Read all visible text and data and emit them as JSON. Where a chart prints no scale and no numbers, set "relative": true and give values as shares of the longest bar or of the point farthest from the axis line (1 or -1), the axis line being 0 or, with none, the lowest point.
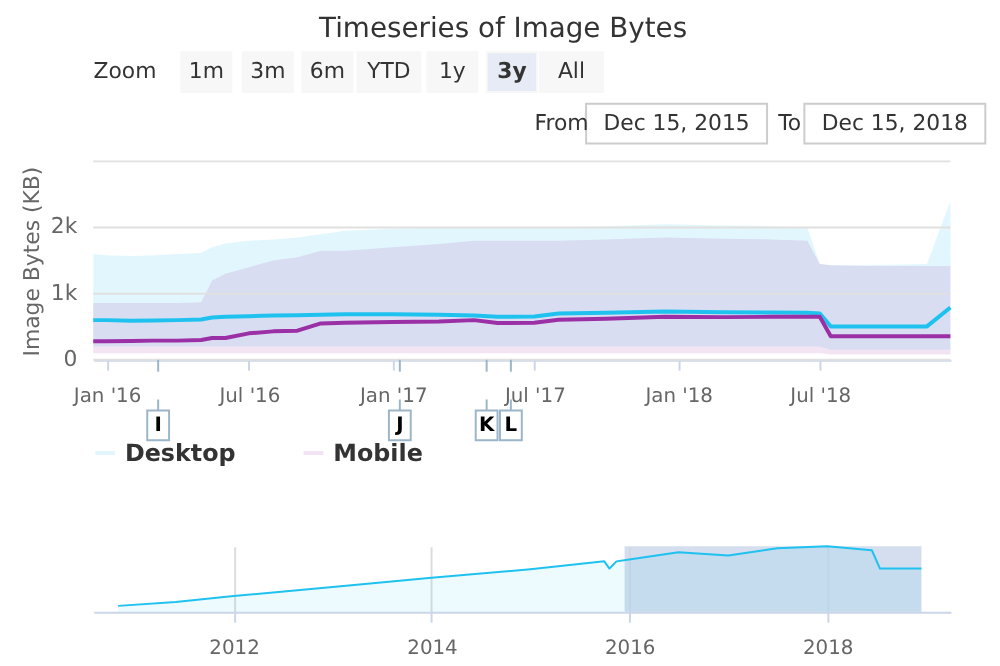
{
  "chart_data": [
    {
      "type": "line",
      "title": "Timeseries of Image Bytes",
      "ylabel": "Image Bytes (KB)",
      "x": [
        "2015-12-15",
        "2016-01-01",
        "2016-02-01",
        "2016-03-01",
        "2016-04-01",
        "2016-05-01",
        "2016-05-15",
        "2016-06-01",
        "2016-07-01",
        "2016-08-01",
        "2016-09-01",
        "2016-10-01",
        "2016-11-01",
        "2017-01-01",
        "2017-03-01",
        "2017-04-15",
        "2017-05-15",
        "2017-07-01",
        "2017-08-01",
        "2017-10-01",
        "2017-12-15",
        "2018-03-01",
        "2018-05-01",
        "2018-06-15",
        "2018-07-01",
        "2018-07-15",
        "2018-09-01",
        "2018-11-15",
        "2018-12-15"
      ],
      "series": [
        {
          "name": "Desktop",
          "color": "#1fc2ef",
          "values": [
            600,
            600,
            590,
            595,
            600,
            610,
            640,
            650,
            660,
            670,
            675,
            680,
            690,
            690,
            680,
            670,
            650,
            655,
            700,
            710,
            730,
            720,
            715,
            710,
            700,
            505,
            505,
            505,
            790
          ],
          "lower": [
            200,
            200,
            200,
            200,
            200,
            200,
            200,
            200,
            200,
            200,
            200,
            200,
            200,
            200,
            200,
            200,
            200,
            200,
            200,
            200,
            200,
            200,
            200,
            200,
            200,
            150,
            150,
            150,
            150
          ],
          "upper": [
            1600,
            1580,
            1570,
            1580,
            1600,
            1620,
            1700,
            1760,
            1800,
            1820,
            1850,
            1900,
            1950,
            1980,
            2000,
            2000,
            2000,
            2000,
            2000,
            2020,
            2050,
            2030,
            2020,
            2000,
            1450,
            1430,
            1430,
            1450,
            2400
          ]
        },
        {
          "name": "Mobile",
          "color": "#9b2fa6",
          "values": [
            280,
            280,
            285,
            290,
            290,
            300,
            330,
            330,
            400,
            430,
            440,
            550,
            560,
            570,
            580,
            600,
            555,
            560,
            605,
            620,
            650,
            645,
            650,
            650,
            650,
            357,
            357,
            357,
            357
          ],
          "lower": [
            100,
            100,
            100,
            100,
            100,
            100,
            100,
            100,
            100,
            100,
            100,
            100,
            100,
            100,
            100,
            100,
            100,
            100,
            100,
            100,
            100,
            100,
            100,
            100,
            100,
            80,
            80,
            80,
            80
          ],
          "upper": [
            860,
            860,
            860,
            860,
            860,
            870,
            1200,
            1300,
            1400,
            1500,
            1550,
            1650,
            1650,
            1700,
            1750,
            1800,
            1800,
            1800,
            1800,
            1820,
            1850,
            1830,
            1820,
            1800,
            1450,
            1430,
            1420,
            1420,
            1420
          ]
        }
      ],
      "xlim": [
        "2015-12-15",
        "2018-12-15"
      ],
      "xticks": [
        {
          "value": "2016-01-01",
          "label": "Jan '16"
        },
        {
          "value": "2016-07-01",
          "label": "Jul '16"
        },
        {
          "value": "2017-01-01",
          "label": "Jan '17"
        },
        {
          "value": "2017-07-01",
          "label": "Jul '17"
        },
        {
          "value": "2018-01-01",
          "label": "Jan '18"
        },
        {
          "value": "2018-07-01",
          "label": "Jul '18"
        }
      ],
      "ylim": [
        0,
        3000
      ],
      "yticks": [
        0,
        {
          "value": 1000,
          "label": "1k"
        },
        {
          "value": 2000,
          "label": "2k"
        },
        {
          "value": 3000,
          "label": null
        }
      ],
      "grid": "y",
      "legend": "bottom",
      "annotations": [
        "Zoom",
        "1m",
        "3m",
        "6m",
        "YTD",
        "1y",
        "3y",
        "All",
        "From",
        "Dec 15, 2015",
        "To",
        "Dec 15, 2018"
      ],
      "ref_lines": [
        {
          "axis": "x",
          "value": "2016-03-07",
          "label": "I"
        },
        {
          "axis": "x",
          "value": "2017-01-10",
          "label": "J"
        },
        {
          "axis": "x",
          "value": "2017-05-01",
          "label": "K"
        },
        {
          "axis": "x",
          "value": "2017-06-01",
          "label": "L"
        }
      ]
    },
    {
      "type": "area",
      "relative": true,
      "tick_labels": "x",
      "grid": "x",
      "x": [
        "2010-11-01",
        "2011-06-01",
        "2012-01-01",
        "2013-01-01",
        "2014-01-01",
        "2015-01-01",
        "2015-10-01",
        "2015-10-20",
        "2015-11-15",
        "2016-01-01",
        "2016-07-01",
        "2017-01-01",
        "2017-07-01",
        "2018-01-01",
        "2018-06-15",
        "2018-07-15",
        "2018-12-15"
      ],
      "series": [
        {
          "color": "#1fc2ef",
          "values": [
            0.09,
            0.15,
            0.24,
            0.38,
            0.52,
            0.65,
            0.77,
            0.66,
            0.77,
            0.8,
            0.91,
            0.86,
            0.97,
            1.0,
            0.94,
            0.66,
            0.66
          ]
        }
      ],
      "xlim": [
        "2010-08-01",
        "2019-04-01"
      ],
      "xticks": [
        {
          "value": "2012-01-01",
          "label": "2012"
        },
        {
          "value": "2014-01-01",
          "label": "2014"
        },
        {
          "value": "2016-01-01",
          "label": "2016"
        },
        {
          "value": "2018-01-01",
          "label": "2018"
        }
      ],
      "bands": [
        {
          "axis": "x",
          "from": "2015-12-15",
          "to": "2018-12-15",
          "color": "#c9d6ea"
        }
      ]
    }
  ]
}
